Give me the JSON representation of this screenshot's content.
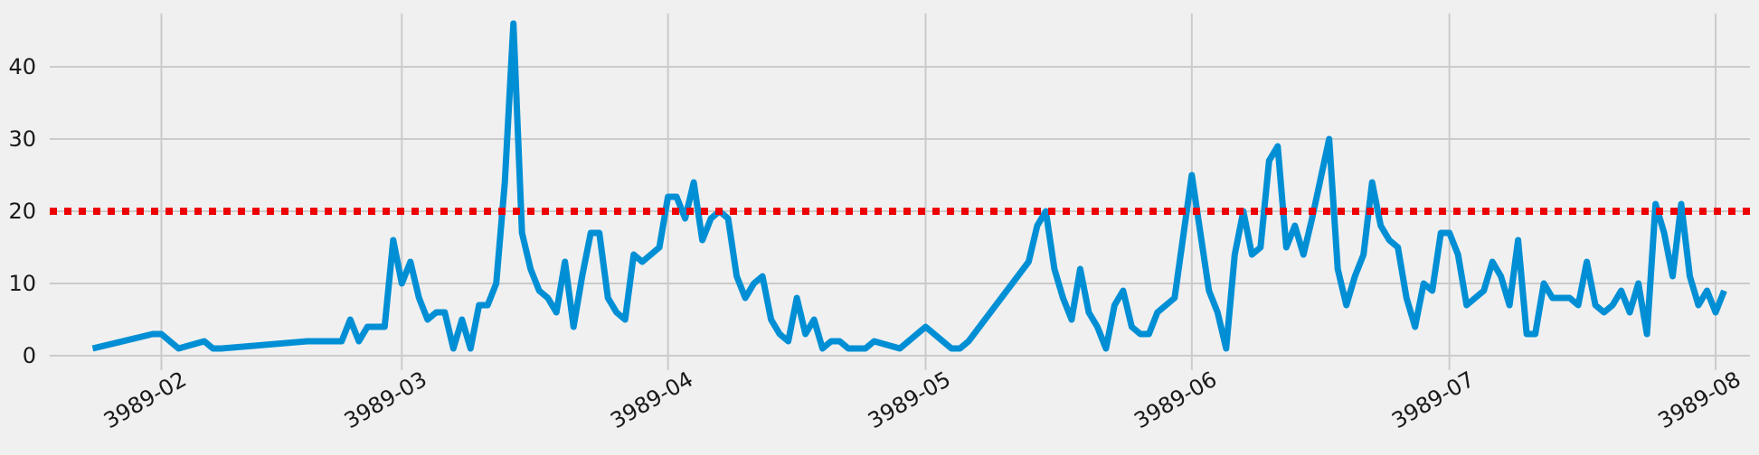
{
  "chart_data": {
    "type": "line",
    "title": "",
    "xlabel": "",
    "ylabel": "",
    "x_ticks": [
      {
        "date": "3989-02-01",
        "label": "3989-02"
      },
      {
        "date": "3989-03-01",
        "label": "3989-03"
      },
      {
        "date": "3989-04-01",
        "label": "3989-04"
      },
      {
        "date": "3989-05-01",
        "label": "3989-05"
      },
      {
        "date": "3989-06-01",
        "label": "3989-06"
      },
      {
        "date": "3989-07-01",
        "label": "3989-07"
      },
      {
        "date": "3989-08-01",
        "label": "3989-08"
      }
    ],
    "y_ticks": [
      0,
      10,
      20,
      30,
      40
    ],
    "xlim": [
      "3989-01-19",
      "3989-08-05"
    ],
    "ylim": [
      -2,
      48
    ],
    "grid": true,
    "series": [
      {
        "color": "#008fd5",
        "points": [
          [
            "3989-01-24",
            1
          ],
          [
            "3989-01-31",
            3
          ],
          [
            "3989-02-01",
            3
          ],
          [
            "3989-02-02",
            2
          ],
          [
            "3989-02-03",
            1
          ],
          [
            "3989-02-06",
            2
          ],
          [
            "3989-02-07",
            1
          ],
          [
            "3989-02-08",
            1
          ],
          [
            "3989-02-18",
            2
          ],
          [
            "3989-02-22",
            2
          ],
          [
            "3989-02-23",
            5
          ],
          [
            "3989-02-24",
            2
          ],
          [
            "3989-02-25",
            4
          ],
          [
            "3989-02-27",
            4
          ],
          [
            "3989-02-28",
            16
          ],
          [
            "3989-03-01",
            10
          ],
          [
            "3989-03-02",
            13
          ],
          [
            "3989-03-03",
            8
          ],
          [
            "3989-03-04",
            5
          ],
          [
            "3989-03-05",
            6
          ],
          [
            "3989-03-06",
            6
          ],
          [
            "3989-03-07",
            1
          ],
          [
            "3989-03-08",
            5
          ],
          [
            "3989-03-09",
            1
          ],
          [
            "3989-03-10",
            7
          ],
          [
            "3989-03-11",
            7
          ],
          [
            "3989-03-12",
            10
          ],
          [
            "3989-03-13",
            24
          ],
          [
            "3989-03-14",
            46
          ],
          [
            "3989-03-15",
            17
          ],
          [
            "3989-03-16",
            12
          ],
          [
            "3989-03-17",
            9
          ],
          [
            "3989-03-18",
            8
          ],
          [
            "3989-03-19",
            6
          ],
          [
            "3989-03-20",
            13
          ],
          [
            "3989-03-21",
            4
          ],
          [
            "3989-03-22",
            11
          ],
          [
            "3989-03-23",
            17
          ],
          [
            "3989-03-24",
            17
          ],
          [
            "3989-03-25",
            8
          ],
          [
            "3989-03-26",
            6
          ],
          [
            "3989-03-27",
            5
          ],
          [
            "3989-03-28",
            14
          ],
          [
            "3989-03-29",
            13
          ],
          [
            "3989-03-31",
            15
          ],
          [
            "3989-04-01",
            22
          ],
          [
            "3989-04-02",
            22
          ],
          [
            "3989-04-03",
            19
          ],
          [
            "3989-04-04",
            24
          ],
          [
            "3989-04-05",
            16
          ],
          [
            "3989-04-06",
            19
          ],
          [
            "3989-04-07",
            20
          ],
          [
            "3989-04-08",
            19
          ],
          [
            "3989-04-09",
            11
          ],
          [
            "3989-04-10",
            8
          ],
          [
            "3989-04-11",
            10
          ],
          [
            "3989-04-12",
            11
          ],
          [
            "3989-04-13",
            5
          ],
          [
            "3989-04-14",
            3
          ],
          [
            "3989-04-15",
            2
          ],
          [
            "3989-04-16",
            8
          ],
          [
            "3989-04-17",
            3
          ],
          [
            "3989-04-18",
            5
          ],
          [
            "3989-04-19",
            1
          ],
          [
            "3989-04-20",
            2
          ],
          [
            "3989-04-21",
            2
          ],
          [
            "3989-04-22",
            1
          ],
          [
            "3989-04-23",
            1
          ],
          [
            "3989-04-24",
            1
          ],
          [
            "3989-04-25",
            2
          ],
          [
            "3989-04-28",
            1
          ],
          [
            "3989-05-01",
            4
          ],
          [
            "3989-05-04",
            1
          ],
          [
            "3989-05-05",
            1
          ],
          [
            "3989-05-06",
            2
          ],
          [
            "3989-05-13",
            13
          ],
          [
            "3989-05-14",
            18
          ],
          [
            "3989-05-15",
            20
          ],
          [
            "3989-05-16",
            12
          ],
          [
            "3989-05-17",
            8
          ],
          [
            "3989-05-18",
            5
          ],
          [
            "3989-05-19",
            12
          ],
          [
            "3989-05-20",
            6
          ],
          [
            "3989-05-21",
            4
          ],
          [
            "3989-05-22",
            1
          ],
          [
            "3989-05-23",
            7
          ],
          [
            "3989-05-24",
            9
          ],
          [
            "3989-05-25",
            4
          ],
          [
            "3989-05-26",
            3
          ],
          [
            "3989-05-27",
            3
          ],
          [
            "3989-05-28",
            6
          ],
          [
            "3989-05-30",
            8
          ],
          [
            "3989-06-01",
            25
          ],
          [
            "3989-06-03",
            9
          ],
          [
            "3989-06-04",
            6
          ],
          [
            "3989-06-05",
            1
          ],
          [
            "3989-06-06",
            14
          ],
          [
            "3989-06-07",
            20
          ],
          [
            "3989-06-08",
            14
          ],
          [
            "3989-06-09",
            15
          ],
          [
            "3989-06-10",
            27
          ],
          [
            "3989-06-11",
            29
          ],
          [
            "3989-06-12",
            15
          ],
          [
            "3989-06-13",
            18
          ],
          [
            "3989-06-14",
            14
          ],
          [
            "3989-06-15",
            19
          ],
          [
            "3989-06-17",
            30
          ],
          [
            "3989-06-18",
            12
          ],
          [
            "3989-06-19",
            7
          ],
          [
            "3989-06-20",
            11
          ],
          [
            "3989-06-21",
            14
          ],
          [
            "3989-06-22",
            24
          ],
          [
            "3989-06-23",
            18
          ],
          [
            "3989-06-24",
            16
          ],
          [
            "3989-06-25",
            15
          ],
          [
            "3989-06-26",
            8
          ],
          [
            "3989-06-27",
            4
          ],
          [
            "3989-06-28",
            10
          ],
          [
            "3989-06-29",
            9
          ],
          [
            "3989-06-30",
            17
          ],
          [
            "3989-07-01",
            17
          ],
          [
            "3989-07-02",
            14
          ],
          [
            "3989-07-03",
            7
          ],
          [
            "3989-07-05",
            9
          ],
          [
            "3989-07-06",
            13
          ],
          [
            "3989-07-07",
            11
          ],
          [
            "3989-07-08",
            7
          ],
          [
            "3989-07-09",
            16
          ],
          [
            "3989-07-10",
            3
          ],
          [
            "3989-07-11",
            3
          ],
          [
            "3989-07-12",
            10
          ],
          [
            "3989-07-13",
            8
          ],
          [
            "3989-07-14",
            8
          ],
          [
            "3989-07-15",
            8
          ],
          [
            "3989-07-16",
            7
          ],
          [
            "3989-07-17",
            13
          ],
          [
            "3989-07-18",
            7
          ],
          [
            "3989-07-19",
            6
          ],
          [
            "3989-07-20",
            7
          ],
          [
            "3989-07-21",
            9
          ],
          [
            "3989-07-22",
            6
          ],
          [
            "3989-07-23",
            10
          ],
          [
            "3989-07-24",
            3
          ],
          [
            "3989-07-25",
            21
          ],
          [
            "3989-07-26",
            17
          ],
          [
            "3989-07-27",
            11
          ],
          [
            "3989-07-28",
            21
          ],
          [
            "3989-07-29",
            11
          ],
          [
            "3989-07-30",
            7
          ],
          [
            "3989-07-31",
            9
          ],
          [
            "3989-08-01",
            6
          ],
          [
            "3989-08-02",
            9
          ]
        ]
      }
    ],
    "reference_line": {
      "y": 20,
      "style": "dotted",
      "color": "#ee0000"
    },
    "background_color": "#f0f0f0",
    "grid_color": "#cbcbcb"
  }
}
